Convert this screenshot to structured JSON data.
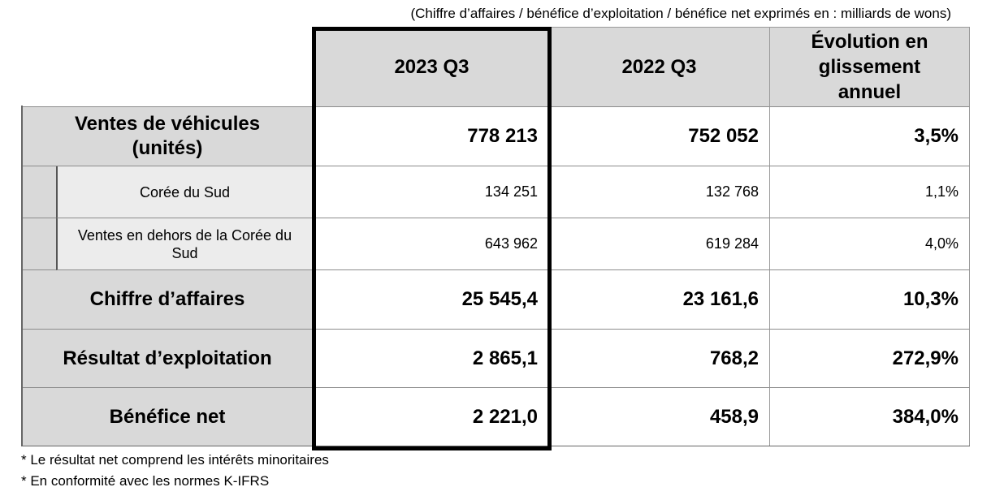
{
  "caption": "(Chiffre d’affaires / bénéfice d’exploitation / bénéfice net exprimés en : milliards de wons)",
  "headers": {
    "col1": "2023 Q3",
    "col2": "2022 Q3",
    "col3": "Évolution en glissement annuel"
  },
  "rows": [
    {
      "label": "Ventes de véhicules (unités)",
      "v2023": "778 213",
      "v2022": "752 052",
      "yoy": "3,5%"
    },
    {
      "label": "Corée du Sud",
      "v2023": "134 251",
      "v2022": "132 768",
      "yoy": "1,1%"
    },
    {
      "label": "Ventes en dehors de la Corée du Sud",
      "v2023": "643 962",
      "v2022": "619 284",
      "yoy": "4,0%"
    },
    {
      "label": "Chiffre d’affaires",
      "v2023": "25 545,4",
      "v2022": "23 161,6",
      "yoy": "10,3%"
    },
    {
      "label": "Résultat d’exploitation",
      "v2023": "2 865,1",
      "v2022": "768,2",
      "yoy": "272,9%"
    },
    {
      "label": "Bénéfice net",
      "v2023": "2 221,0",
      "v2022": "458,9",
      "yoy": "384,0%"
    }
  ],
  "notes": [
    "* Le résultat net comprend les intérêts minoritaires",
    "* En conformité avec les normes K-IFRS"
  ]
}
